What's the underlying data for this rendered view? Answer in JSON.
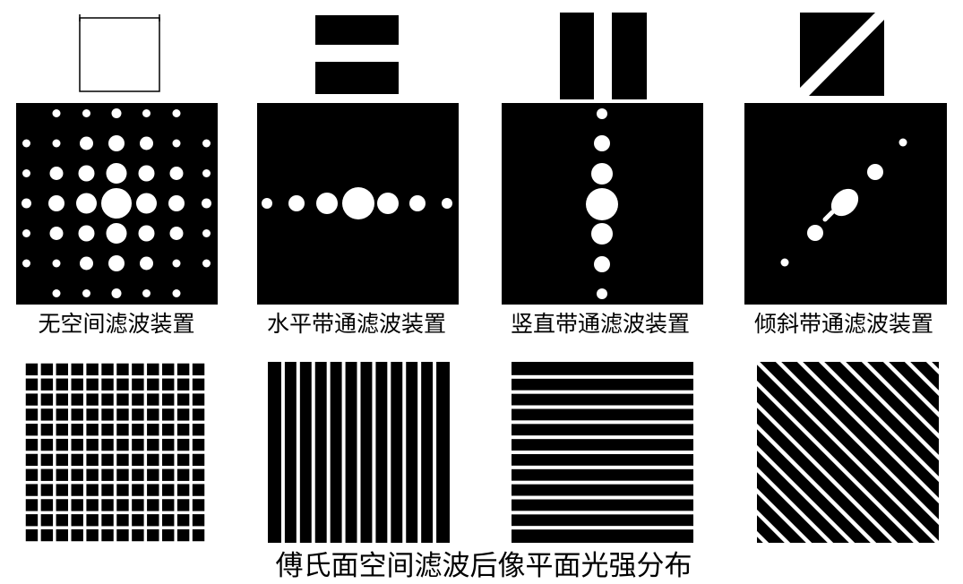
{
  "columns": [
    {
      "key": "none",
      "filter": "open-aperture",
      "label": "无空间滤波装置"
    },
    {
      "key": "horizontal",
      "filter": "horizontal-slit",
      "label": "水平带通滤波装置"
    },
    {
      "key": "vertical",
      "filter": "vertical-slit",
      "label": "竖直带通滤波装置"
    },
    {
      "key": "diagonal",
      "filter": "diagonal-slit",
      "label": "倾斜带通滤波装置"
    }
  ],
  "caption": "傅氏面空间滤波后像平面光强分布",
  "colors": {
    "foreground": "#000000",
    "background": "#ffffff"
  }
}
